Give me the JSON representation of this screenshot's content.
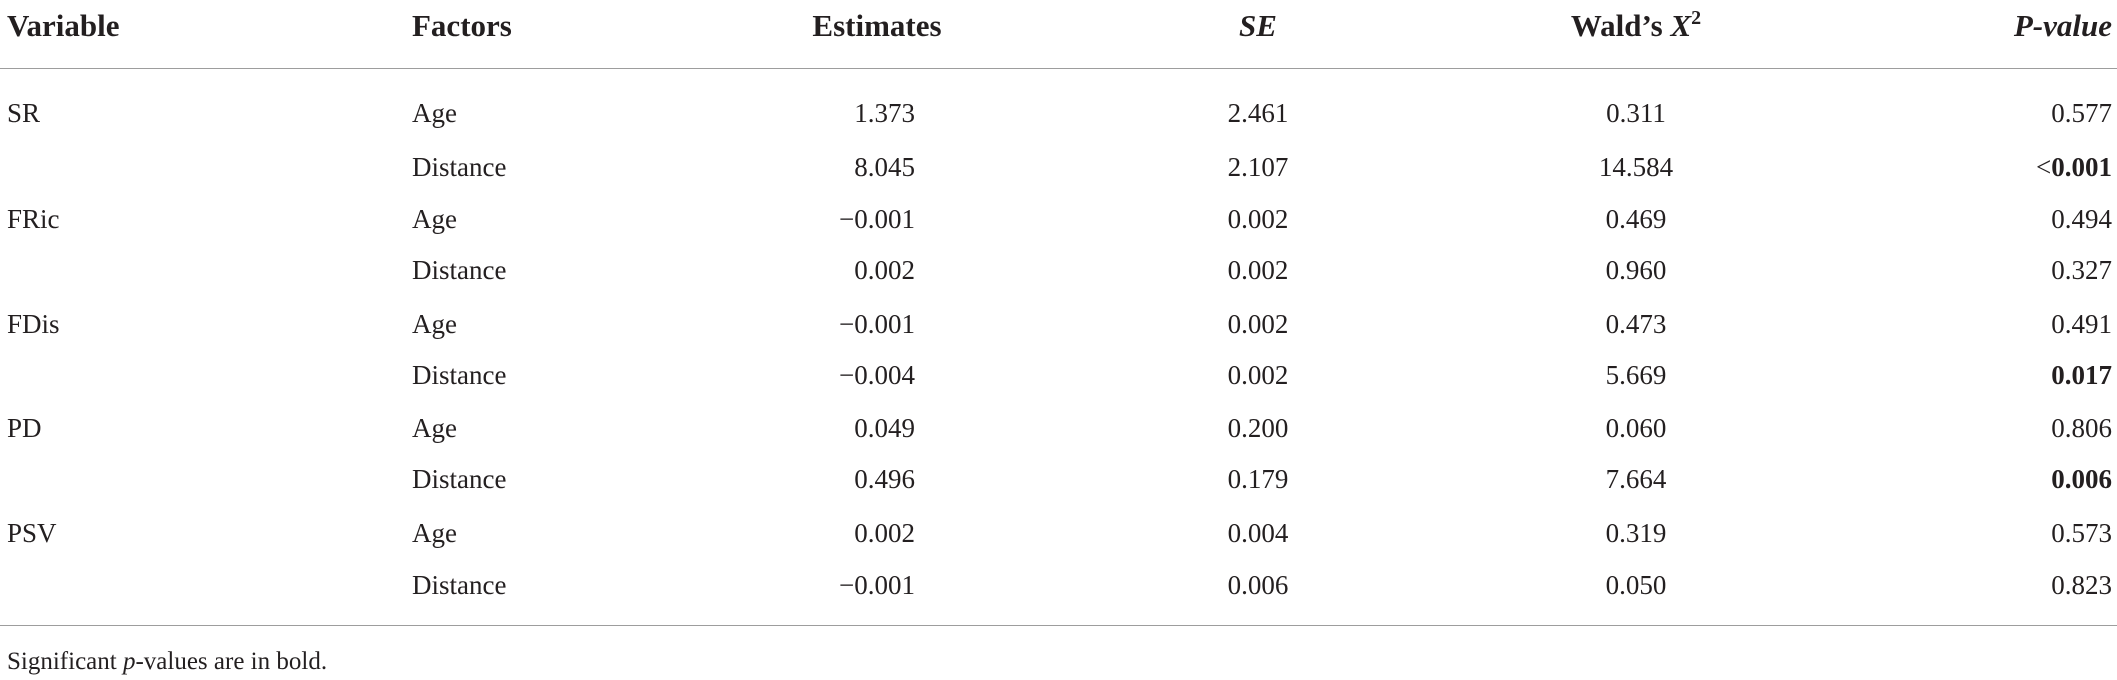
{
  "table": {
    "header": {
      "variable": "Variable",
      "factor": "Factors",
      "estimate": "Estimates",
      "se": "SE",
      "wald": {
        "text": "Wald’s ",
        "symbol": "X",
        "sup": "2"
      },
      "p": "P-value"
    },
    "groups": [
      {
        "variable": "SR",
        "rows": [
          {
            "factor": "Age",
            "estimate": "1.373",
            "se": "2.461",
            "wald": "0.311",
            "p": "0.577",
            "significant": false
          },
          {
            "factor": "Distance",
            "estimate": "8.045",
            "se": "2.107",
            "wald": "14.584",
            "p_prefix": "<",
            "p": "0.001",
            "significant": true
          }
        ]
      },
      {
        "variable": "FRic",
        "rows": [
          {
            "factor": "Age",
            "estimate": "−0.001",
            "se": "0.002",
            "wald": "0.469",
            "p": "0.494",
            "significant": false
          },
          {
            "factor": "Distance",
            "estimate": "0.002",
            "se": "0.002",
            "wald": "0.960",
            "p": "0.327",
            "significant": false
          }
        ]
      },
      {
        "variable": "FDis",
        "rows": [
          {
            "factor": "Age",
            "estimate": "−0.001",
            "se": "0.002",
            "wald": "0.473",
            "p": "0.491",
            "significant": false
          },
          {
            "factor": "Distance",
            "estimate": "−0.004",
            "se": "0.002",
            "wald": "5.669",
            "p": "0.017",
            "significant": true
          }
        ]
      },
      {
        "variable": "PD",
        "rows": [
          {
            "factor": "Age",
            "estimate": "0.049",
            "se": "0.200",
            "wald": "0.060",
            "p": "0.806",
            "significant": false
          },
          {
            "factor": "Distance",
            "estimate": "0.496",
            "se": "0.179",
            "wald": "7.664",
            "p": "0.006",
            "significant": true
          }
        ]
      },
      {
        "variable": "PSV",
        "rows": [
          {
            "factor": "Age",
            "estimate": "0.002",
            "se": "0.004",
            "wald": "0.319",
            "p": "0.573",
            "significant": false
          },
          {
            "factor": "Distance",
            "estimate": "−0.001",
            "se": "0.006",
            "wald": "0.050",
            "p": "0.823",
            "significant": false
          }
        ]
      }
    ],
    "note": [
      "Significant ",
      "p",
      "-values are in bold."
    ]
  }
}
